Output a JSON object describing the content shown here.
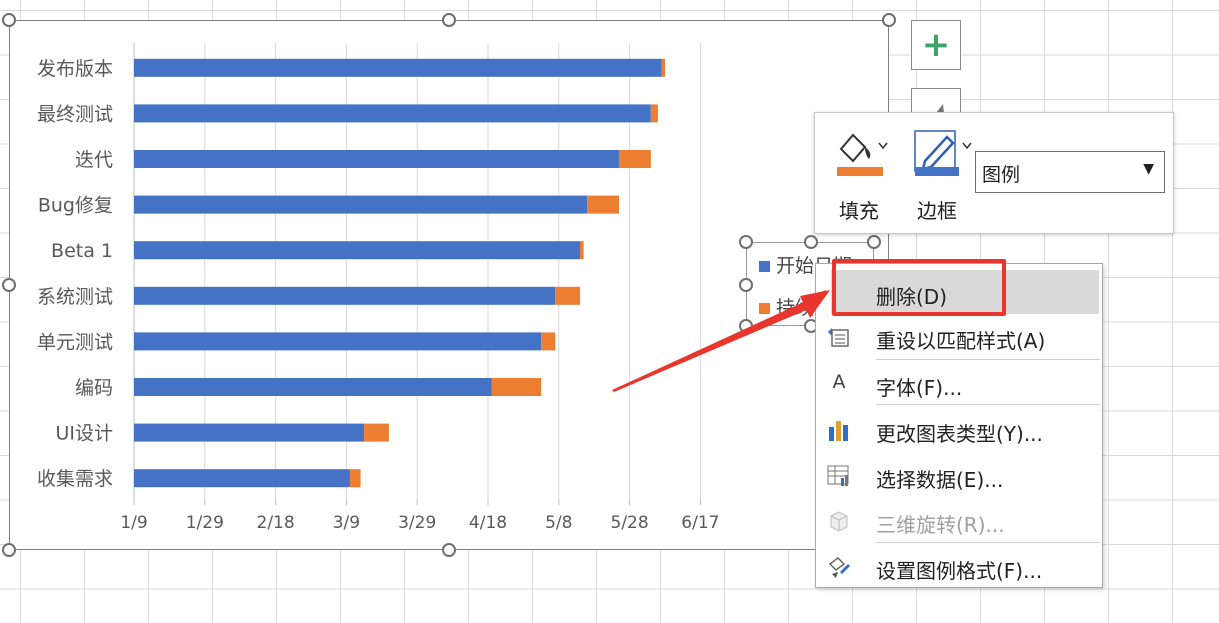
{
  "chart_data": {
    "type": "bar",
    "orientation": "horizontal",
    "stacked": true,
    "categories": [
      "发布版本",
      "最终测试",
      "迭代",
      "Bug修复",
      "Beta 1",
      "系统测试",
      "单元测试",
      "编码",
      "UI设计",
      "收集需求"
    ],
    "series": [
      {
        "name": "开始日期",
        "color": "#4472c4",
        "values": [
          "2021-06-07",
          "2021-06-04",
          "2021-05-26",
          "2021-05-17",
          "2021-05-15",
          "2021-05-08",
          "2021-05-04",
          "2021-04-20",
          "2021-03-15",
          "2021-03-11"
        ]
      },
      {
        "name": "持续时间",
        "color": "#ed7d31",
        "values": [
          1,
          2,
          9,
          9,
          1,
          7,
          4,
          14,
          7,
          3
        ]
      }
    ],
    "x_axis_start": "2021-01-09",
    "xticks": [
      "1/9",
      "1/29",
      "2/18",
      "3/9",
      "3/29",
      "4/18",
      "5/8",
      "5/28",
      "6/17"
    ],
    "grid": "vertical",
    "legend_position": "right"
  },
  "toolbar": {
    "fill_label": "填充",
    "border_label": "边框",
    "element_select": "图例",
    "fill_color": "#ed7d31",
    "border_color": "#4472c4"
  },
  "legend_box": {
    "items": [
      "开始日期",
      "持续时间"
    ]
  },
  "context_menu": {
    "items": [
      {
        "icon": "none",
        "label": "删除(D)",
        "highlighted": true
      },
      {
        "icon": "reset-style-icon",
        "label": "重设以匹配样式(A)"
      },
      {
        "icon": "font-icon",
        "label": "字体(F)..."
      },
      {
        "icon": "chart-type-icon",
        "label": "更改图表类型(Y)..."
      },
      {
        "icon": "select-data-icon",
        "label": "选择数据(E)..."
      },
      {
        "icon": "3d-rotation-icon",
        "label": "三维旋转(R)...",
        "disabled": true
      },
      {
        "icon": "format-legend-icon",
        "label": "设置图例格式(F)..."
      }
    ]
  },
  "colors": {
    "accent_red": "#e8362d",
    "plus_green": "#3aa366"
  }
}
